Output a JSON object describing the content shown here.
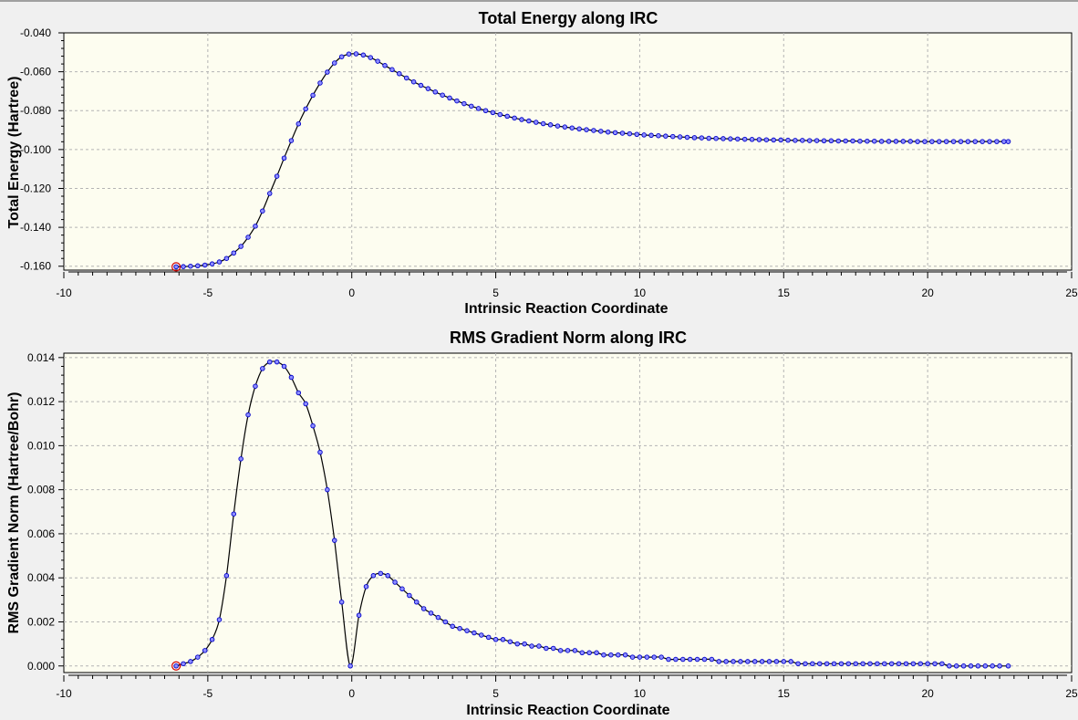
{
  "chart_data": [
    {
      "type": "line",
      "title": "Total Energy along IRC",
      "xlabel": "Intrinsic Reaction Coordinate",
      "ylabel": "Total Energy (Hartree)",
      "xlim": [
        -10,
        25
      ],
      "ylim": [
        -0.162,
        -0.04
      ],
      "xticks": [
        -10,
        -5,
        0,
        5,
        10,
        15,
        20,
        25
      ],
      "xtick_labels": [
        "-10",
        "-5",
        "0",
        "5",
        "10",
        "15",
        "20",
        "25"
      ],
      "yticks": [
        -0.16,
        -0.14,
        -0.12,
        -0.1,
        -0.08,
        -0.06,
        -0.04
      ],
      "ytick_labels": [
        "-0.160",
        "-0.140",
        "-0.120",
        "-0.100",
        "-0.080",
        "-0.060",
        "-0.040"
      ],
      "grid": true,
      "series": [
        {
          "highlight_point": [
            -6.1,
            -0.1603
          ],
          "points": [
            [
              -6.1,
              -0.1603
            ],
            [
              -5.85,
              -0.1602
            ],
            [
              -5.6,
              -0.16
            ],
            [
              -5.35,
              -0.1598
            ],
            [
              -5.1,
              -0.1594
            ],
            [
              -4.85,
              -0.1588
            ],
            [
              -4.6,
              -0.1578
            ],
            [
              -4.35,
              -0.156
            ],
            [
              -4.1,
              -0.1532
            ],
            [
              -3.85,
              -0.1498
            ],
            [
              -3.6,
              -0.1451
            ],
            [
              -3.35,
              -0.1394
            ],
            [
              -3.1,
              -0.1316
            ],
            [
              -2.85,
              -0.1226
            ],
            [
              -2.6,
              -0.1137
            ],
            [
              -2.35,
              -0.1044
            ],
            [
              -2.1,
              -0.0954
            ],
            [
              -1.85,
              -0.0868
            ],
            [
              -1.6,
              -0.0791
            ],
            [
              -1.35,
              -0.0721
            ],
            [
              -1.1,
              -0.0658
            ],
            [
              -0.85,
              -0.0602
            ],
            [
              -0.6,
              -0.0555
            ],
            [
              -0.35,
              -0.0523
            ],
            [
              -0.1,
              -0.0509
            ],
            [
              0.15,
              -0.0508
            ],
            [
              0.4,
              -0.0514
            ],
            [
              0.65,
              -0.0527
            ],
            [
              0.9,
              -0.0546
            ],
            [
              1.15,
              -0.0568
            ],
            [
              1.4,
              -0.0589
            ],
            [
              1.65,
              -0.061
            ],
            [
              1.9,
              -0.0632
            ],
            [
              2.15,
              -0.0652
            ],
            [
              2.4,
              -0.067
            ],
            [
              2.65,
              -0.0687
            ],
            [
              2.9,
              -0.0704
            ],
            [
              3.15,
              -0.072
            ],
            [
              3.4,
              -0.0735
            ],
            [
              3.65,
              -0.075
            ],
            [
              3.9,
              -0.0764
            ],
            [
              4.15,
              -0.0777
            ],
            [
              4.4,
              -0.0789
            ],
            [
              4.65,
              -0.08
            ],
            [
              4.9,
              -0.081
            ],
            [
              5.15,
              -0.082
            ],
            [
              5.4,
              -0.0829
            ],
            [
              5.65,
              -0.0838
            ],
            [
              5.9,
              -0.0846
            ],
            [
              6.15,
              -0.0853
            ],
            [
              6.4,
              -0.086
            ],
            [
              6.65,
              -0.0867
            ],
            [
              6.9,
              -0.0873
            ],
            [
              7.15,
              -0.0879
            ],
            [
              7.4,
              -0.0884
            ],
            [
              7.65,
              -0.0889
            ],
            [
              7.9,
              -0.0894
            ],
            [
              8.15,
              -0.0898
            ],
            [
              8.4,
              -0.0902
            ],
            [
              8.65,
              -0.0906
            ],
            [
              8.9,
              -0.091
            ],
            [
              9.15,
              -0.0913
            ],
            [
              9.4,
              -0.0916
            ],
            [
              9.65,
              -0.0919
            ],
            [
              9.9,
              -0.0922
            ],
            [
              10.15,
              -0.0925
            ],
            [
              10.4,
              -0.0927
            ],
            [
              10.65,
              -0.0929
            ],
            [
              10.9,
              -0.0931
            ],
            [
              11.15,
              -0.0933
            ],
            [
              11.4,
              -0.0935
            ],
            [
              11.65,
              -0.0937
            ],
            [
              11.9,
              -0.0939
            ],
            [
              12.15,
              -0.094
            ],
            [
              12.4,
              -0.0942
            ],
            [
              12.65,
              -0.0943
            ],
            [
              12.9,
              -0.0944
            ],
            [
              13.15,
              -0.0945
            ],
            [
              13.4,
              -0.0946
            ],
            [
              13.65,
              -0.0947
            ],
            [
              13.9,
              -0.0948
            ],
            [
              14.15,
              -0.0949
            ],
            [
              14.4,
              -0.095
            ],
            [
              14.65,
              -0.0951
            ],
            [
              14.9,
              -0.0951
            ],
            [
              15.15,
              -0.0952
            ],
            [
              15.4,
              -0.0953
            ],
            [
              15.65,
              -0.0953
            ],
            [
              15.9,
              -0.0954
            ],
            [
              16.15,
              -0.0954
            ],
            [
              16.4,
              -0.0955
            ],
            [
              16.65,
              -0.0955
            ],
            [
              16.9,
              -0.0956
            ],
            [
              17.15,
              -0.0956
            ],
            [
              17.4,
              -0.0956
            ],
            [
              17.65,
              -0.0957
            ],
            [
              17.9,
              -0.0957
            ],
            [
              18.15,
              -0.0957
            ],
            [
              18.4,
              -0.0958
            ],
            [
              18.65,
              -0.0958
            ],
            [
              18.9,
              -0.0958
            ],
            [
              19.15,
              -0.0958
            ],
            [
              19.4,
              -0.0958
            ],
            [
              19.65,
              -0.0959
            ],
            [
              19.9,
              -0.0959
            ],
            [
              20.15,
              -0.0959
            ],
            [
              20.4,
              -0.0959
            ],
            [
              20.65,
              -0.0959
            ],
            [
              20.9,
              -0.0959
            ],
            [
              21.15,
              -0.0959
            ],
            [
              21.4,
              -0.0959
            ],
            [
              21.65,
              -0.0959
            ],
            [
              21.9,
              -0.0959
            ],
            [
              22.15,
              -0.0959
            ],
            [
              22.4,
              -0.0959
            ],
            [
              22.65,
              -0.0959
            ],
            [
              22.8,
              -0.0959
            ]
          ]
        }
      ]
    },
    {
      "type": "line",
      "title": "RMS Gradient Norm along IRC",
      "xlabel": "Intrinsic Reaction Coordinate",
      "ylabel": "RMS Gradient Norm (Hartree/Bohr)",
      "xlim": [
        -10,
        25
      ],
      "ylim": [
        -0.0003,
        0.0142
      ],
      "xticks": [
        -10,
        -5,
        0,
        5,
        10,
        15,
        20,
        25
      ],
      "xtick_labels": [
        "-10",
        "-5",
        "0",
        "5",
        "10",
        "15",
        "20",
        "25"
      ],
      "yticks": [
        0,
        0.002,
        0.004,
        0.006,
        0.008,
        0.01,
        0.012,
        0.014
      ],
      "ytick_labels": [
        "0.000",
        "0.002",
        "0.004",
        "0.006",
        "0.008",
        "0.010",
        "0.012",
        "0.014"
      ],
      "grid": true,
      "series": [
        {
          "highlight_point": [
            -6.1,
            0.0
          ],
          "points": [
            [
              -6.1,
              0.0
            ],
            [
              -5.85,
              0.0001
            ],
            [
              -5.6,
              0.0002
            ],
            [
              -5.35,
              0.0004
            ],
            [
              -5.1,
              0.0007
            ],
            [
              -4.85,
              0.0012
            ],
            [
              -4.6,
              0.0021
            ],
            [
              -4.35,
              0.0041
            ],
            [
              -4.1,
              0.0069
            ],
            [
              -3.85,
              0.0094
            ],
            [
              -3.6,
              0.0114
            ],
            [
              -3.35,
              0.0127
            ],
            [
              -3.1,
              0.0135
            ],
            [
              -2.85,
              0.0138
            ],
            [
              -2.6,
              0.0138
            ],
            [
              -2.35,
              0.0136
            ],
            [
              -2.1,
              0.0131
            ],
            [
              -1.85,
              0.0124
            ],
            [
              -1.6,
              0.0119
            ],
            [
              -1.35,
              0.0109
            ],
            [
              -1.1,
              0.0097
            ],
            [
              -0.85,
              0.008
            ],
            [
              -0.6,
              0.0057
            ],
            [
              -0.35,
              0.0029
            ],
            [
              -0.05,
              0.0
            ],
            [
              0.25,
              0.0023
            ],
            [
              0.5,
              0.0036
            ],
            [
              0.75,
              0.0041
            ],
            [
              1.0,
              0.0042
            ],
            [
              1.25,
              0.0041
            ],
            [
              1.5,
              0.0038
            ],
            [
              1.75,
              0.0035
            ],
            [
              2.0,
              0.0032
            ],
            [
              2.25,
              0.0029
            ],
            [
              2.5,
              0.0026
            ],
            [
              2.75,
              0.0024
            ],
            [
              3.0,
              0.0022
            ],
            [
              3.25,
              0.002
            ],
            [
              3.5,
              0.0018
            ],
            [
              3.75,
              0.0017
            ],
            [
              4.0,
              0.0016
            ],
            [
              4.25,
              0.0015
            ],
            [
              4.5,
              0.0014
            ],
            [
              4.75,
              0.0013
            ],
            [
              5.0,
              0.0012
            ],
            [
              5.25,
              0.0012
            ],
            [
              5.5,
              0.0011
            ],
            [
              5.75,
              0.001
            ],
            [
              6.0,
              0.001
            ],
            [
              6.25,
              0.0009
            ],
            [
              6.5,
              0.0009
            ],
            [
              6.75,
              0.0008
            ],
            [
              7.0,
              0.0008
            ],
            [
              7.25,
              0.0007
            ],
            [
              7.5,
              0.0007
            ],
            [
              7.75,
              0.0007
            ],
            [
              8.0,
              0.0006
            ],
            [
              8.25,
              0.0006
            ],
            [
              8.5,
              0.0006
            ],
            [
              8.75,
              0.0005
            ],
            [
              9.0,
              0.0005
            ],
            [
              9.25,
              0.0005
            ],
            [
              9.5,
              0.0005
            ],
            [
              9.75,
              0.0004
            ],
            [
              10.0,
              0.0004
            ],
            [
              10.25,
              0.0004
            ],
            [
              10.5,
              0.0004
            ],
            [
              10.75,
              0.0004
            ],
            [
              11.0,
              0.0003
            ],
            [
              11.25,
              0.0003
            ],
            [
              11.5,
              0.0003
            ],
            [
              11.75,
              0.0003
            ],
            [
              12.0,
              0.0003
            ],
            [
              12.25,
              0.0003
            ],
            [
              12.5,
              0.0003
            ],
            [
              12.75,
              0.0002
            ],
            [
              13.0,
              0.0002
            ],
            [
              13.25,
              0.0002
            ],
            [
              13.5,
              0.0002
            ],
            [
              13.75,
              0.0002
            ],
            [
              14.0,
              0.0002
            ],
            [
              14.25,
              0.0002
            ],
            [
              14.5,
              0.0002
            ],
            [
              14.75,
              0.0002
            ],
            [
              15.0,
              0.0002
            ],
            [
              15.25,
              0.0002
            ],
            [
              15.5,
              0.0001
            ],
            [
              15.75,
              0.0001
            ],
            [
              16.0,
              0.0001
            ],
            [
              16.25,
              0.0001
            ],
            [
              16.5,
              0.0001
            ],
            [
              16.75,
              0.0001
            ],
            [
              17.0,
              0.0001
            ],
            [
              17.25,
              0.0001
            ],
            [
              17.5,
              0.0001
            ],
            [
              17.75,
              0.0001
            ],
            [
              18.0,
              0.0001
            ],
            [
              18.25,
              0.0001
            ],
            [
              18.5,
              0.0001
            ],
            [
              18.75,
              0.0001
            ],
            [
              19.0,
              0.0001
            ],
            [
              19.25,
              0.0001
            ],
            [
              19.5,
              0.0001
            ],
            [
              19.75,
              0.0001
            ],
            [
              20.0,
              0.0001
            ],
            [
              20.25,
              0.0001
            ],
            [
              20.5,
              0.0001
            ],
            [
              20.75,
              0.0
            ],
            [
              21.0,
              0.0
            ],
            [
              21.25,
              0.0
            ],
            [
              21.5,
              0.0
            ],
            [
              21.75,
              0.0
            ],
            [
              22.0,
              0.0
            ],
            [
              22.25,
              0.0
            ],
            [
              22.5,
              0.0
            ],
            [
              22.8,
              0.0
            ]
          ]
        }
      ]
    }
  ],
  "style": {
    "plot_background": "#fdfdf0",
    "grid_color": "#b4b4b4",
    "line_color": "#000000",
    "marker_fill": "#8e8eff",
    "marker_edge": "#0000c8",
    "highlight_color": "#d00000"
  }
}
